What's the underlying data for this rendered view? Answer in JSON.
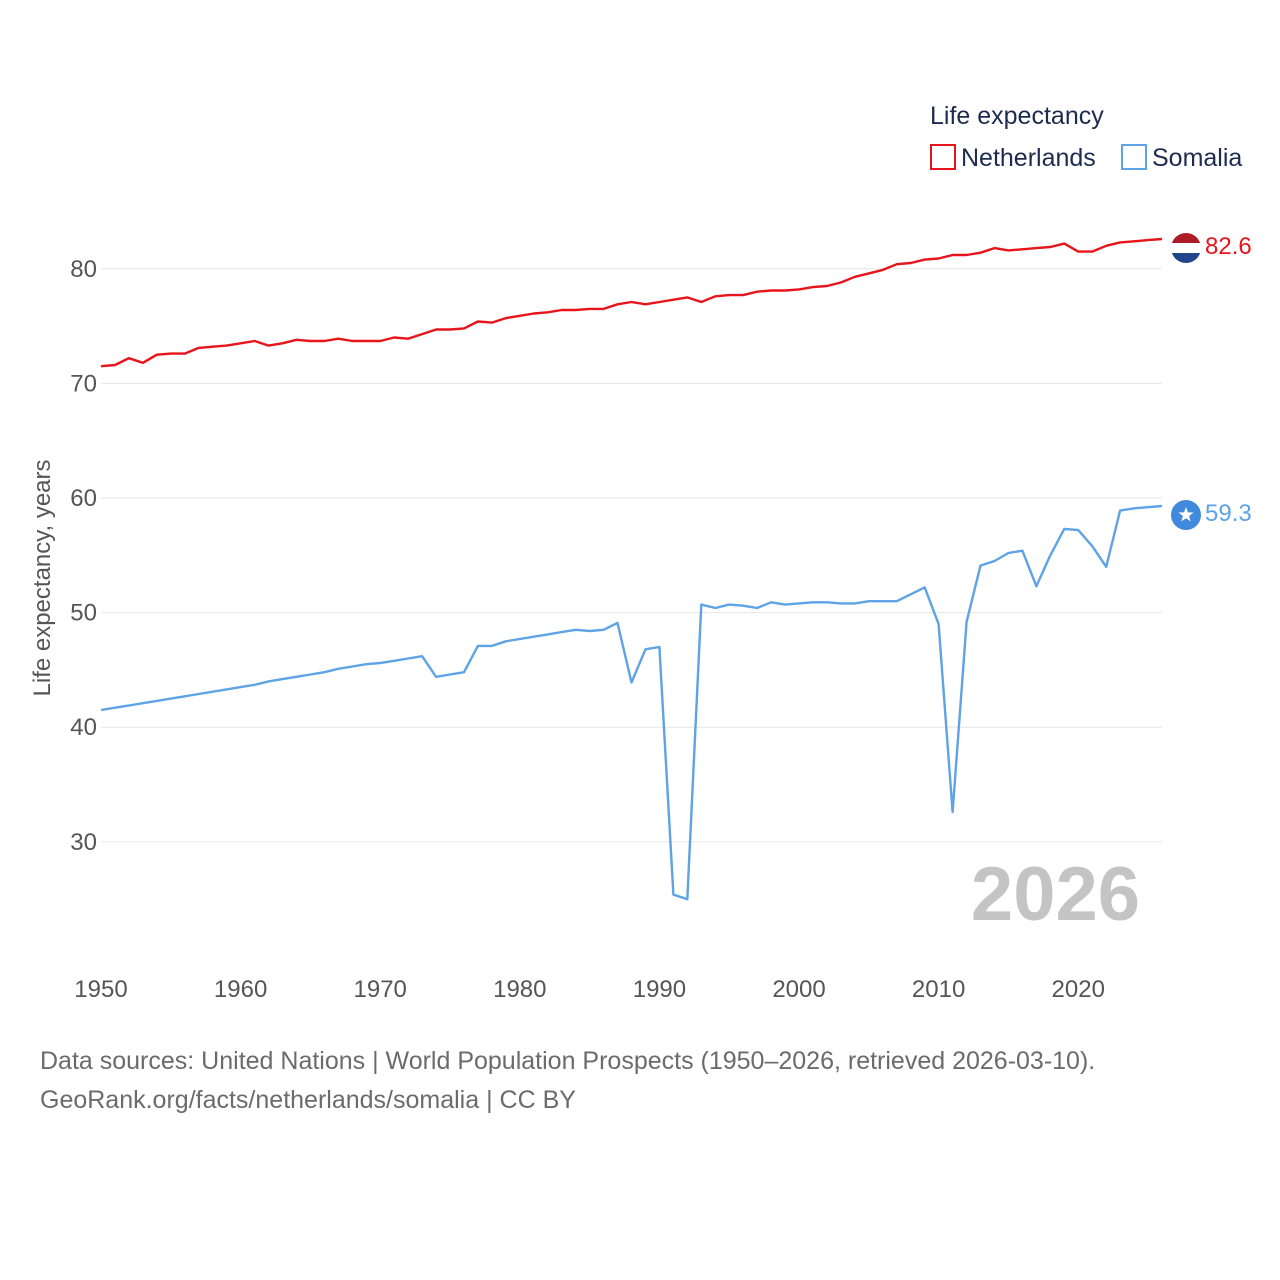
{
  "chart_data": {
    "type": "line",
    "title": "",
    "legend_title": "Life expectancy",
    "legend_position": "top-right",
    "ylabel": "Life expectancy, years",
    "xlabel": "",
    "xlim": [
      1950,
      2026
    ],
    "ylim": [
      21,
      86
    ],
    "x_ticks": [
      1950,
      1960,
      1970,
      1980,
      1990,
      2000,
      2010,
      2020
    ],
    "y_ticks": [
      30,
      40,
      50,
      60,
      70,
      80
    ],
    "gridlines": true,
    "current_year_label": "2026",
    "x": [
      1950,
      1951,
      1952,
      1953,
      1954,
      1955,
      1956,
      1957,
      1958,
      1959,
      1960,
      1961,
      1962,
      1963,
      1964,
      1965,
      1966,
      1967,
      1968,
      1969,
      1970,
      1971,
      1972,
      1973,
      1974,
      1975,
      1976,
      1977,
      1978,
      1979,
      1980,
      1981,
      1982,
      1983,
      1984,
      1985,
      1986,
      1987,
      1988,
      1989,
      1990,
      1991,
      1992,
      1993,
      1994,
      1995,
      1996,
      1997,
      1998,
      1999,
      2000,
      2001,
      2002,
      2003,
      2004,
      2005,
      2006,
      2007,
      2008,
      2009,
      2010,
      2011,
      2012,
      2013,
      2014,
      2015,
      2016,
      2017,
      2018,
      2019,
      2020,
      2021,
      2022,
      2023,
      2024,
      2025,
      2026
    ],
    "series": [
      {
        "name": "Netherlands",
        "color": "#e8141b",
        "end_value_label": "82.6",
        "end_icon": "netherlands-flag-icon",
        "values": [
          71.5,
          71.6,
          72.2,
          71.8,
          72.5,
          72.6,
          72.6,
          73.1,
          73.2,
          73.3,
          73.5,
          73.7,
          73.3,
          73.5,
          73.8,
          73.7,
          73.7,
          73.9,
          73.7,
          73.7,
          73.7,
          74.0,
          73.9,
          74.3,
          74.7,
          74.7,
          74.8,
          75.4,
          75.3,
          75.7,
          75.9,
          76.1,
          76.2,
          76.4,
          76.4,
          76.5,
          76.5,
          76.9,
          77.1,
          76.9,
          77.1,
          77.3,
          77.5,
          77.1,
          77.6,
          77.7,
          77.7,
          78.0,
          78.1,
          78.1,
          78.2,
          78.4,
          78.5,
          78.8,
          79.3,
          79.6,
          79.9,
          80.4,
          80.5,
          80.8,
          80.9,
          81.2,
          81.2,
          81.4,
          81.8,
          81.6,
          81.7,
          81.8,
          81.9,
          82.2,
          81.5,
          81.5,
          82.0,
          82.3,
          82.4,
          82.5,
          82.6
        ]
      },
      {
        "name": "Somalia",
        "color": "#5ea3e6",
        "end_value_label": "59.3",
        "end_icon": "somalia-flag-icon",
        "values": [
          41.5,
          41.7,
          41.9,
          42.1,
          42.3,
          42.5,
          42.7,
          42.9,
          43.1,
          43.3,
          43.5,
          43.7,
          44.0,
          44.2,
          44.4,
          44.6,
          44.8,
          45.1,
          45.3,
          45.5,
          45.6,
          45.8,
          46.0,
          46.2,
          44.4,
          44.6,
          44.8,
          47.1,
          47.1,
          47.5,
          47.7,
          47.9,
          48.1,
          48.3,
          48.5,
          48.4,
          48.5,
          49.1,
          43.9,
          46.8,
          47.0,
          25.4,
          25.0,
          50.7,
          50.4,
          50.7,
          50.6,
          50.4,
          50.9,
          50.7,
          50.8,
          50.9,
          50.9,
          50.8,
          50.8,
          51.0,
          51.0,
          51.0,
          51.6,
          52.2,
          49.0,
          32.6,
          49.2,
          54.1,
          54.5,
          55.2,
          55.4,
          52.3,
          55.0,
          57.3,
          57.2,
          55.8,
          54.0,
          58.9,
          59.1,
          59.2,
          59.3
        ]
      }
    ]
  },
  "footer": {
    "sources": "Data sources: United Nations | World Population Prospects (1950–2026, retrieved 2026-03-10).",
    "attribution": "GeoRank.org/facts/netherlands/somalia | CC BY"
  }
}
